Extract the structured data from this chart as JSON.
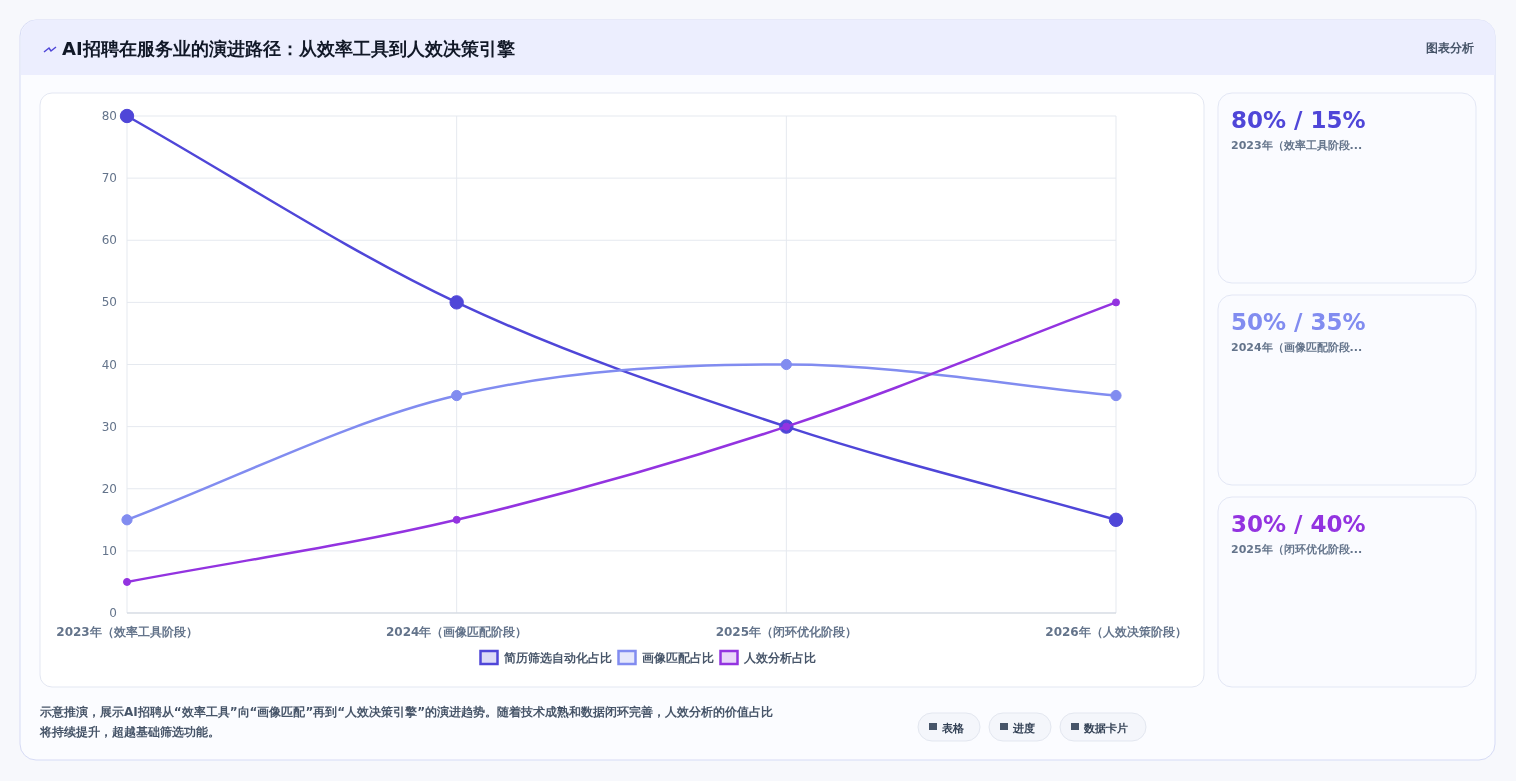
{
  "chart_data": [
    {
      "type": "line",
      "title": "AI招聘在服务业的演进路径：从效率工具到人效决策引擎",
      "categories": [
        "2023年（效率工具阶段）",
        "2024年（画像匹配阶段）",
        "2025年（闭环优化阶段）",
        "2026年（人效决策阶段）"
      ],
      "series": [
        {
          "name": "简历筛选自动化占比",
          "color": "#4f46d8",
          "values": [
            80,
            50,
            30,
            15
          ]
        },
        {
          "name": "画像匹配占比",
          "color": "#818cf0",
          "values": [
            15,
            35,
            40,
            35
          ]
        },
        {
          "name": "人效分析占比",
          "color": "#9333e0",
          "values": [
            5,
            15,
            30,
            50
          ]
        }
      ],
      "ylim": [
        0,
        80
      ],
      "yticks": [
        0,
        10,
        20,
        30,
        40,
        50,
        60,
        70,
        80
      ],
      "grid": true,
      "legend": "bottom",
      "marker": "circle",
      "annotations": [
        "示意推演，展示AI招聘从“效率工具”向“画像匹配”再到“人效决策引擎”的演进趋势。随着技术成熟和数据闭环完善，人效分析的价值占比将持续提升，超越基础筛选功能。",
        "图表分析",
        "表格",
        "进度",
        "数据卡片"
      ]
    },
    {
      "type": "other",
      "colors": [
        "#4f46d8",
        "#818cf0",
        "#9333e0"
      ],
      "annotations": [
        "80% / 15%",
        "2023年（效率工具阶段...",
        "50% / 35%",
        "2024年（画像匹配阶段...",
        "30% / 40%",
        "2025年（闭环优化阶段..."
      ]
    }
  ]
}
